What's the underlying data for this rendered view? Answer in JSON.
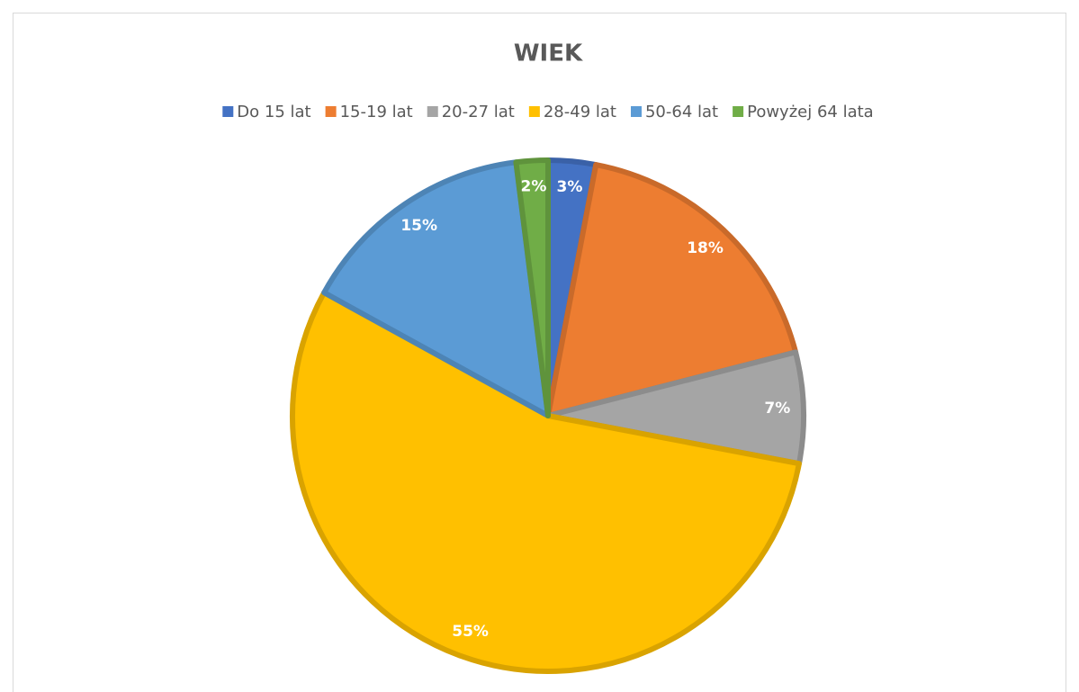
{
  "chart_data": {
    "type": "pie",
    "title": "WIEK",
    "categories": [
      "Do 15 lat",
      "15-19 lat",
      "20-27 lat",
      "28-49 lat",
      "50-64 lat",
      "Powyżej 64 lata"
    ],
    "values": [
      3,
      18,
      7,
      55,
      15,
      2
    ],
    "value_labels": [
      "3%",
      "18%",
      "7%",
      "55%",
      "15%",
      "2%"
    ],
    "colors": [
      "#4472c4",
      "#ed7d31",
      "#a5a5a5",
      "#ffc000",
      "#5b9bd5",
      "#70ad47"
    ],
    "legend": "top"
  }
}
